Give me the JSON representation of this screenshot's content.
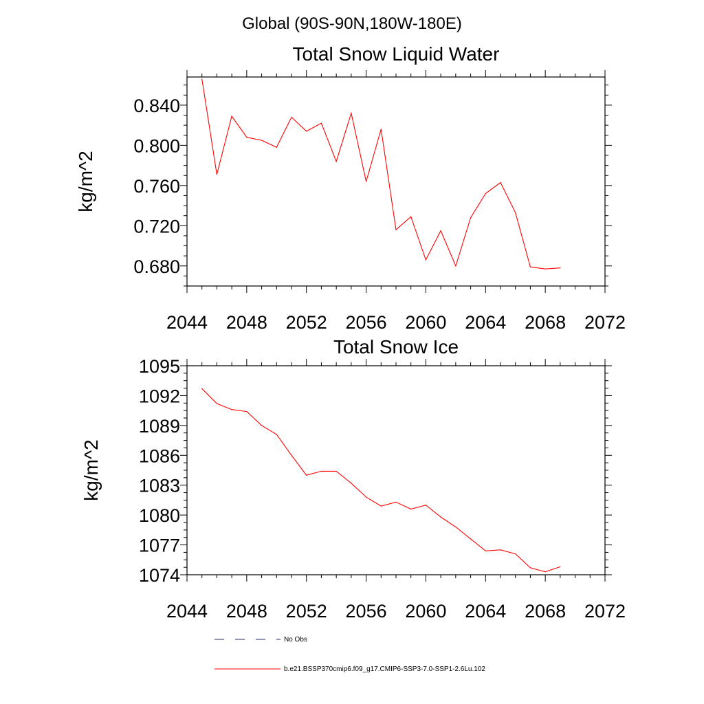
{
  "header": {
    "region": "Global (90S-90N,180W-180E)"
  },
  "colors": {
    "series": "#ff0000",
    "obs": "#1f2a6e",
    "axis": "#000000"
  },
  "chart_data": [
    {
      "type": "line",
      "title": "Total Snow Liquid Water",
      "ylabel": "kg/m^2",
      "xlim": [
        2044,
        2072
      ],
      "ylim": [
        0.66,
        0.868
      ],
      "xticks": [
        2044,
        2048,
        2052,
        2056,
        2060,
        2064,
        2068,
        2072
      ],
      "xtick_labels": [
        "2044",
        "2048",
        "2052",
        "2056",
        "2060",
        "2064",
        "2068",
        "2072"
      ],
      "yticks": [
        0.68,
        0.72,
        0.76,
        0.8,
        0.84
      ],
      "ytick_labels": [
        "0.680",
        "0.720",
        "0.760",
        "0.800",
        "0.840"
      ],
      "series": [
        {
          "x": [
            2045,
            2046,
            2047,
            2048,
            2049,
            2050,
            2051,
            2052,
            2053,
            2054,
            2055,
            2056,
            2057,
            2058,
            2059,
            2060,
            2061,
            2062,
            2063,
            2064,
            2065,
            2066,
            2067,
            2068,
            2069
          ],
          "values": [
            0.866,
            0.771,
            0.829,
            0.808,
            0.805,
            0.798,
            0.828,
            0.814,
            0.822,
            0.784,
            0.832,
            0.764,
            0.816,
            0.716,
            0.729,
            0.686,
            0.715,
            0.68,
            0.728,
            0.752,
            0.763,
            0.733,
            0.679,
            0.677,
            0.678
          ]
        }
      ]
    },
    {
      "type": "line",
      "title": "Total Snow Ice",
      "ylabel": "kg/m^2",
      "xlim": [
        2044,
        2072
      ],
      "ylim": [
        1074,
        1095
      ],
      "xticks": [
        2044,
        2048,
        2052,
        2056,
        2060,
        2064,
        2068,
        2072
      ],
      "xtick_labels": [
        "2044",
        "2048",
        "2052",
        "2056",
        "2060",
        "2064",
        "2068",
        "2072"
      ],
      "yticks": [
        1074,
        1077,
        1080,
        1083,
        1086,
        1089,
        1092,
        1095
      ],
      "ytick_labels": [
        "1074",
        "1077",
        "1080",
        "1083",
        "1086",
        "1089",
        "1092",
        "1095"
      ],
      "series": [
        {
          "x": [
            2045,
            2046,
            2047,
            2048,
            2049,
            2050,
            2051,
            2052,
            2053,
            2054,
            2055,
            2056,
            2057,
            2058,
            2059,
            2060,
            2061,
            2062,
            2063,
            2064,
            2065,
            2066,
            2067,
            2068,
            2069
          ],
          "values": [
            1092.7,
            1091.2,
            1090.6,
            1090.4,
            1089.0,
            1088.1,
            1086.0,
            1084.0,
            1084.4,
            1084.4,
            1083.2,
            1081.8,
            1080.9,
            1081.3,
            1080.6,
            1081.0,
            1079.8,
            1078.8,
            1077.6,
            1076.4,
            1076.5,
            1076.1,
            1074.7,
            1074.3,
            1074.8
          ]
        }
      ]
    }
  ],
  "legend": {
    "items": [
      {
        "label": "No Obs",
        "style": "dashed"
      },
      {
        "label": "b.e21.BSSP370cmip6.f09_g17.CMIP6-SSP3-7.0-SSP1-2.6Lu.102",
        "style": "solid"
      }
    ]
  }
}
